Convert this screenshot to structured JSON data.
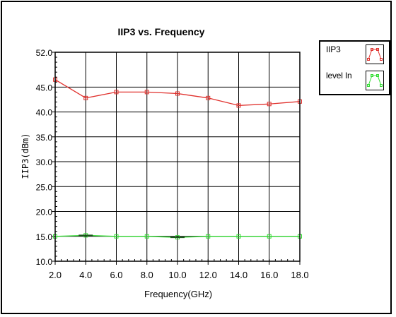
{
  "chart_data": {
    "type": "line",
    "title": "IIP3 vs. Frequency",
    "xlabel": "Frequency(GHz)",
    "ylabel": "IIP3(dBm)",
    "xlim": [
      2.0,
      18.0
    ],
    "ylim": [
      10.0,
      52.0
    ],
    "x_ticks": [
      "2.0",
      "4.0",
      "6.0",
      "8.0",
      "10.0",
      "12.0",
      "14.0",
      "16.0",
      "18.0"
    ],
    "y_ticks": [
      "52.0",
      "45.0",
      "40.0",
      "35.0",
      "30.0",
      "25.0",
      "20.0",
      "15.0",
      "10.0"
    ],
    "y_tick_values": [
      52,
      45,
      40,
      35,
      30,
      25,
      20,
      15,
      10
    ],
    "grid": true,
    "legend_position": "top-right, outside plot",
    "x": [
      2,
      4,
      6,
      8,
      10,
      12,
      14,
      16,
      18
    ],
    "series": [
      {
        "name": "IIP3",
        "color": "#e0302c",
        "marker": "square",
        "values": [
          46.5,
          42.8,
          44.0,
          44.0,
          43.7,
          42.8,
          41.3,
          41.6,
          42.1
        ]
      },
      {
        "name": "level In",
        "color": "#33dd33",
        "marker": "square",
        "values": [
          15.0,
          15.2,
          15.0,
          15.0,
          14.8,
          15.0,
          15.0,
          15.0,
          15.0
        ]
      }
    ]
  }
}
